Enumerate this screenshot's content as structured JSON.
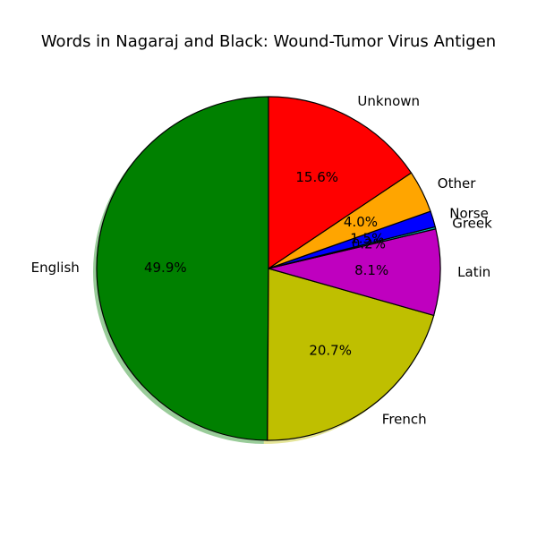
{
  "chart_data": {
    "type": "pie",
    "title": "Words in Nagaraj and Black: Wound-Tumor Virus Antigen",
    "slices": [
      {
        "label": "English",
        "value": 49.9,
        "pct_label": "49.9%",
        "color": "#008000"
      },
      {
        "label": "French",
        "value": 20.7,
        "pct_label": "20.7%",
        "color": "#bfbf00"
      },
      {
        "label": "Latin",
        "value": 8.1,
        "pct_label": "8.1%",
        "color": "#bf00bf"
      },
      {
        "label": "Greek",
        "value": 0.2,
        "pct_label": "0.2%",
        "color": "#00bfbf"
      },
      {
        "label": "Norse",
        "value": 1.5,
        "pct_label": "1.5%",
        "color": "#0000ff"
      },
      {
        "label": "Other",
        "value": 4.0,
        "pct_label": "4.0%",
        "color": "#ffa500"
      },
      {
        "label": "Unknown",
        "value": 15.6,
        "pct_label": "15.6%",
        "color": "#ff0000"
      }
    ],
    "start_angle_deg": 90,
    "direction": "counterclockwise",
    "shadow": true,
    "edgecolor": "#000000"
  }
}
